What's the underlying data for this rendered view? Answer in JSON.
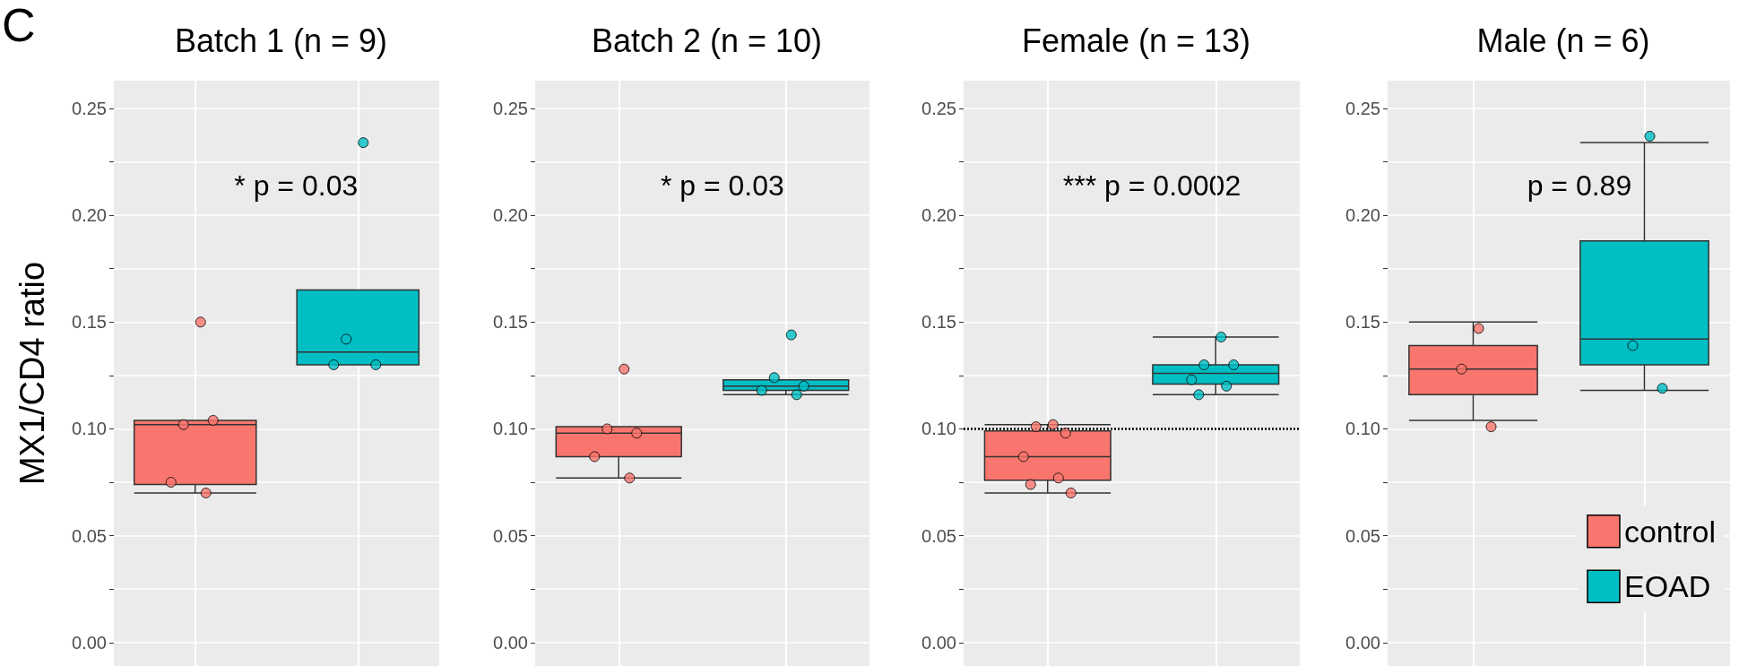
{
  "chart_data": [
    {
      "type": "box",
      "title": "Batch 1 (n = 9)",
      "ylabel": "MX1/CD4 ratio",
      "annotations": [
        "C",
        "* p = 0.03"
      ],
      "categories": [
        null,
        null
      ],
      "ylim": [
        -0.011,
        0.263
      ],
      "yticks": [
        {
          "value": 0,
          "label": "0.00"
        },
        {
          "value": 0.025,
          "label": null
        },
        {
          "value": 0.05,
          "label": "0.05"
        },
        {
          "value": 0.075,
          "label": null
        },
        {
          "value": 0.1,
          "label": "0.10"
        },
        {
          "value": 0.125,
          "label": null
        },
        {
          "value": 0.15,
          "label": "0.15"
        },
        {
          "value": 0.175,
          "label": null
        },
        {
          "value": 0.2,
          "label": "0.20"
        },
        {
          "value": 0.225,
          "label": null
        },
        {
          "value": 0.25,
          "label": "0.25"
        }
      ],
      "grid": true,
      "legend": false,
      "tick_labels": "y",
      "series": [
        {
          "type": "box",
          "color": "#f8766d",
          "boxes": [
            {
              "low": 0.07,
              "q1": 0.074,
              "median": 0.102,
              "q3": 0.104,
              "high": 0.104
            },
            null
          ]
        },
        {
          "type": "box",
          "color": "#00bfc4",
          "boxes": [
            null,
            {
              "low": 0.13,
              "q1": 0.13,
              "median": 0.136,
              "q3": 0.165,
              "high": 0.165
            }
          ]
        },
        {
          "type": "scatter",
          "colors": [
            "#f8766d",
            "#00bfc4"
          ],
          "values": [
            0.15,
            0.234
          ]
        },
        {
          "type": "scatter",
          "colors": [
            "#f8766d",
            "#00bfc4"
          ],
          "values": [
            0.102,
            0.142
          ]
        },
        {
          "type": "scatter",
          "colors": [
            "#f8766d",
            "#00bfc4"
          ],
          "values": [
            0.104,
            0.13
          ]
        },
        {
          "type": "scatter",
          "colors": [
            "#f8766d",
            "#00bfc4"
          ],
          "values": [
            0.075,
            0.13
          ]
        },
        {
          "type": "scatter",
          "colors": [
            "#f8766d",
            "#00bfc4"
          ],
          "values": [
            0.07,
            null
          ]
        }
      ]
    },
    {
      "type": "box",
      "title": "Batch 2 (n = 10)",
      "annotations": [
        "* p = 0.03"
      ],
      "categories": [
        null,
        null
      ],
      "ylim": [
        -0.011,
        0.263
      ],
      "yticks": [
        {
          "value": 0,
          "label": "0.00"
        },
        {
          "value": 0.025,
          "label": null
        },
        {
          "value": 0.05,
          "label": "0.05"
        },
        {
          "value": 0.075,
          "label": null
        },
        {
          "value": 0.1,
          "label": "0.10"
        },
        {
          "value": 0.125,
          "label": null
        },
        {
          "value": 0.15,
          "label": "0.15"
        },
        {
          "value": 0.175,
          "label": null
        },
        {
          "value": 0.2,
          "label": "0.20"
        },
        {
          "value": 0.225,
          "label": null
        },
        {
          "value": 0.25,
          "label": "0.25"
        }
      ],
      "grid": true,
      "legend": false,
      "tick_labels": "y",
      "series": [
        {
          "type": "box",
          "color": "#f8766d",
          "boxes": [
            {
              "low": 0.077,
              "q1": 0.087,
              "median": 0.098,
              "q3": 0.101,
              "high": 0.101
            },
            null
          ]
        },
        {
          "type": "box",
          "color": "#00bfc4",
          "boxes": [
            null,
            {
              "low": 0.116,
              "q1": 0.118,
              "median": 0.12,
              "q3": 0.123,
              "high": 0.123
            }
          ]
        },
        {
          "type": "scatter",
          "colors": [
            "#f8766d",
            "#00bfc4"
          ],
          "values": [
            0.128,
            0.144
          ]
        },
        {
          "type": "scatter",
          "colors": [
            "#f8766d",
            "#00bfc4"
          ],
          "values": [
            0.1,
            0.124
          ]
        },
        {
          "type": "scatter",
          "colors": [
            "#f8766d",
            "#00bfc4"
          ],
          "values": [
            0.098,
            0.12
          ]
        },
        {
          "type": "scatter",
          "colors": [
            "#f8766d",
            "#00bfc4"
          ],
          "values": [
            0.087,
            0.118
          ]
        },
        {
          "type": "scatter",
          "colors": [
            "#f8766d",
            "#00bfc4"
          ],
          "values": [
            0.077,
            0.116
          ]
        }
      ]
    },
    {
      "type": "box",
      "title": "Female (n = 13)",
      "annotations": [
        "*** p = 0.0002"
      ],
      "categories": [
        null,
        null
      ],
      "ylim": [
        -0.011,
        0.263
      ],
      "yticks": [
        {
          "value": 0,
          "label": "0.00"
        },
        {
          "value": 0.025,
          "label": null
        },
        {
          "value": 0.05,
          "label": "0.05"
        },
        {
          "value": 0.075,
          "label": null
        },
        {
          "value": 0.1,
          "label": "0.10"
        },
        {
          "value": 0.125,
          "label": null
        },
        {
          "value": 0.15,
          "label": "0.15"
        },
        {
          "value": 0.175,
          "label": null
        },
        {
          "value": 0.2,
          "label": "0.20"
        },
        {
          "value": 0.225,
          "label": null
        },
        {
          "value": 0.25,
          "label": "0.25"
        }
      ],
      "grid": true,
      "legend": false,
      "tick_labels": "y",
      "ref_lines": [
        {
          "axis": "y",
          "value": 0.1,
          "color": "#000000",
          "line_style": "dotted"
        }
      ],
      "series": [
        {
          "type": "box",
          "color": "#f8766d",
          "boxes": [
            {
              "low": 0.07,
              "q1": 0.076,
              "median": 0.087,
              "q3": 0.099,
              "high": 0.102
            },
            null
          ]
        },
        {
          "type": "box",
          "color": "#00bfc4",
          "boxes": [
            null,
            {
              "low": 0.116,
              "q1": 0.121,
              "median": 0.126,
              "q3": 0.13,
              "high": 0.143
            }
          ]
        },
        {
          "type": "scatter",
          "colors": [
            "#f8766d",
            "#00bfc4"
          ],
          "values": [
            0.102,
            0.143
          ]
        },
        {
          "type": "scatter",
          "colors": [
            "#f8766d",
            "#00bfc4"
          ],
          "values": [
            0.101,
            0.13
          ]
        },
        {
          "type": "scatter",
          "colors": [
            "#f8766d",
            "#00bfc4"
          ],
          "values": [
            0.098,
            0.13
          ]
        },
        {
          "type": "scatter",
          "colors": [
            "#f8766d",
            "#00bfc4"
          ],
          "values": [
            0.087,
            0.123
          ]
        },
        {
          "type": "scatter",
          "colors": [
            "#f8766d",
            "#00bfc4"
          ],
          "values": [
            0.077,
            0.12
          ]
        },
        {
          "type": "scatter",
          "colors": [
            "#f8766d",
            "#00bfc4"
          ],
          "values": [
            0.074,
            0.116
          ]
        },
        {
          "type": "scatter",
          "colors": [
            "#f8766d",
            "#00bfc4"
          ],
          "values": [
            0.07,
            null
          ]
        }
      ]
    },
    {
      "type": "box",
      "title": "Male (n = 6)",
      "annotations": [
        "p = 0.89"
      ],
      "categories": [
        null,
        null
      ],
      "ylim": [
        -0.011,
        0.263
      ],
      "yticks": [
        {
          "value": 0,
          "label": "0.00"
        },
        {
          "value": 0.025,
          "label": null
        },
        {
          "value": 0.05,
          "label": "0.05"
        },
        {
          "value": 0.075,
          "label": null
        },
        {
          "value": 0.1,
          "label": "0.10"
        },
        {
          "value": 0.125,
          "label": null
        },
        {
          "value": 0.15,
          "label": "0.15"
        },
        {
          "value": 0.175,
          "label": null
        },
        {
          "value": 0.2,
          "label": "0.20"
        },
        {
          "value": 0.225,
          "label": null
        },
        {
          "value": 0.25,
          "label": "0.25"
        }
      ],
      "grid": true,
      "legend": "bottom right",
      "tick_labels": "y",
      "series": [
        {
          "type": "box",
          "name": "control",
          "color": "#f8766d",
          "boxes": [
            {
              "low": 0.104,
              "q1": 0.116,
              "median": 0.128,
              "q3": 0.139,
              "high": 0.15
            },
            null
          ]
        },
        {
          "type": "box",
          "name": "EOAD",
          "color": "#00bfc4",
          "boxes": [
            null,
            {
              "low": 0.118,
              "q1": 0.13,
              "median": 0.142,
              "q3": 0.188,
              "high": 0.234
            }
          ]
        },
        {
          "type": "scatter",
          "colors": [
            "#f8766d",
            "#00bfc4"
          ],
          "values": [
            0.147,
            0.237
          ]
        },
        {
          "type": "scatter",
          "colors": [
            "#f8766d",
            "#00bfc4"
          ],
          "values": [
            0.128,
            0.139
          ]
        },
        {
          "type": "scatter",
          "colors": [
            "#f8766d",
            "#00bfc4"
          ],
          "values": [
            0.101,
            0.119
          ]
        }
      ]
    }
  ]
}
